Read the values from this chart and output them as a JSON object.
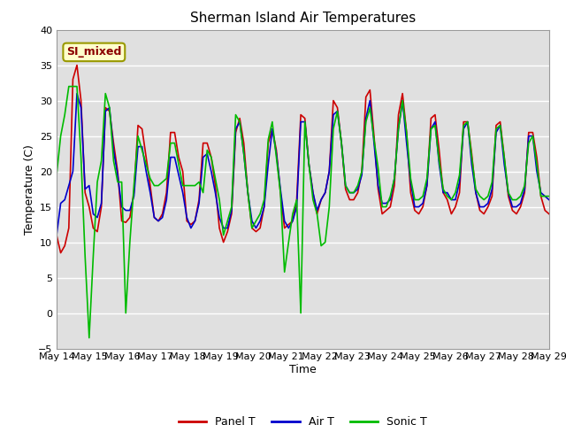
{
  "title": "Sherman Island Air Temperatures",
  "xlabel": "Time",
  "ylabel": "Temperature (C)",
  "ylim": [
    -5,
    40
  ],
  "annotation": "SI_mixed",
  "background_color": "#ffffff",
  "plot_bg_color": "#e0e0e0",
  "grid_color": "#ffffff",
  "x_ticks": [
    "May 14",
    "May 15",
    "May 16",
    "May 17",
    "May 18",
    "May 19",
    "May 20",
    "May 21",
    "May 22",
    "May 23",
    "May 24",
    "May 25",
    "May 26",
    "May 27",
    "May 28",
    "May 29"
  ],
  "legend_labels": [
    "Panel T",
    "Air T",
    "Sonic T"
  ],
  "legend_colors": [
    "#cc0000",
    "#0000cc",
    "#00bb00"
  ],
  "panel_t": [
    11.0,
    8.5,
    9.5,
    12.0,
    33.0,
    35.0,
    30.0,
    17.0,
    15.0,
    12.0,
    11.5,
    15.0,
    29.0,
    28.5,
    24.0,
    20.0,
    13.0,
    12.8,
    13.5,
    17.0,
    26.5,
    26.0,
    22.0,
    18.0,
    13.5,
    13.0,
    14.0,
    17.0,
    25.5,
    25.5,
    22.0,
    20.0,
    13.0,
    12.5,
    13.0,
    16.0,
    24.0,
    24.0,
    22.0,
    18.0,
    12.0,
    10.0,
    11.5,
    14.0,
    25.5,
    27.5,
    24.0,
    17.0,
    12.0,
    11.5,
    12.0,
    15.0,
    24.0,
    26.0,
    23.0,
    17.0,
    12.0,
    12.5,
    13.0,
    16.0,
    28.0,
    27.5,
    21.0,
    17.0,
    14.0,
    16.0,
    17.0,
    20.0,
    30.0,
    29.0,
    24.0,
    17.5,
    16.0,
    16.0,
    17.0,
    20.0,
    30.5,
    31.5,
    25.0,
    17.5,
    14.0,
    14.5,
    15.0,
    18.0,
    28.0,
    31.0,
    25.5,
    17.0,
    14.5,
    14.0,
    15.0,
    18.0,
    27.5,
    28.0,
    23.0,
    17.0,
    16.0,
    14.0,
    15.0,
    17.0,
    27.0,
    27.0,
    22.5,
    17.0,
    14.5,
    14.0,
    15.0,
    16.5,
    26.5,
    27.0,
    22.0,
    16.5,
    14.5,
    14.0,
    15.0,
    17.0,
    25.5,
    25.5,
    22.0,
    16.5,
    14.5,
    14.0
  ],
  "air_t": [
    11.0,
    15.5,
    16.0,
    18.0,
    20.0,
    31.0,
    29.0,
    17.5,
    18.0,
    14.0,
    13.5,
    15.5,
    28.5,
    29.0,
    23.0,
    19.5,
    15.0,
    14.5,
    14.5,
    16.5,
    23.5,
    23.5,
    20.0,
    17.0,
    13.5,
    13.0,
    13.5,
    16.0,
    22.0,
    22.0,
    19.5,
    17.0,
    13.5,
    12.0,
    13.0,
    15.5,
    22.0,
    22.5,
    20.0,
    17.0,
    13.5,
    12.0,
    12.0,
    14.5,
    26.0,
    27.0,
    22.5,
    17.0,
    13.0,
    12.0,
    13.0,
    15.0,
    21.0,
    26.0,
    22.5,
    17.5,
    13.0,
    12.0,
    13.0,
    15.0,
    27.0,
    27.0,
    21.0,
    17.0,
    14.5,
    16.0,
    17.0,
    20.0,
    28.0,
    28.5,
    24.0,
    18.0,
    17.0,
    17.0,
    17.5,
    19.5,
    27.5,
    30.0,
    24.0,
    18.0,
    15.5,
    15.5,
    16.0,
    19.0,
    26.0,
    30.0,
    24.0,
    18.5,
    15.0,
    15.0,
    15.5,
    18.0,
    26.0,
    27.0,
    21.0,
    17.0,
    17.0,
    16.0,
    16.0,
    18.5,
    26.0,
    27.0,
    21.0,
    17.0,
    15.0,
    15.0,
    15.5,
    17.5,
    25.5,
    26.5,
    21.0,
    17.0,
    15.0,
    15.0,
    15.5,
    17.5,
    25.0,
    25.0,
    20.0,
    17.0,
    16.5,
    16.0
  ],
  "sonic_t": [
    19.5,
    25.0,
    28.0,
    32.0,
    32.0,
    32.0,
    22.0,
    8.0,
    -3.5,
    8.0,
    18.5,
    21.5,
    31.0,
    29.0,
    21.5,
    18.5,
    18.5,
    0.0,
    10.0,
    18.0,
    25.0,
    23.0,
    21.0,
    19.0,
    18.0,
    18.0,
    18.5,
    19.0,
    24.0,
    24.0,
    21.0,
    18.0,
    18.0,
    18.0,
    18.0,
    18.5,
    17.0,
    23.0,
    22.0,
    19.0,
    16.0,
    11.0,
    13.0,
    15.0,
    28.0,
    27.0,
    22.5,
    17.0,
    12.0,
    13.0,
    14.0,
    16.0,
    24.5,
    27.0,
    22.0,
    17.0,
    5.8,
    10.0,
    14.0,
    16.0,
    0.0,
    27.0,
    21.0,
    16.0,
    14.0,
    9.5,
    10.0,
    15.0,
    26.0,
    28.5,
    24.0,
    18.0,
    17.0,
    17.0,
    18.0,
    20.0,
    27.0,
    29.0,
    24.5,
    20.5,
    15.0,
    15.0,
    16.5,
    19.0,
    26.0,
    30.0,
    25.5,
    19.0,
    16.0,
    16.0,
    16.5,
    19.0,
    26.0,
    26.5,
    21.5,
    17.5,
    16.5,
    16.0,
    17.0,
    19.5,
    26.5,
    27.0,
    22.0,
    17.5,
    16.5,
    16.0,
    16.5,
    18.5,
    26.0,
    26.5,
    22.0,
    17.0,
    16.0,
    16.0,
    16.5,
    18.0,
    24.0,
    25.0,
    21.0,
    16.5,
    16.5,
    16.5
  ]
}
